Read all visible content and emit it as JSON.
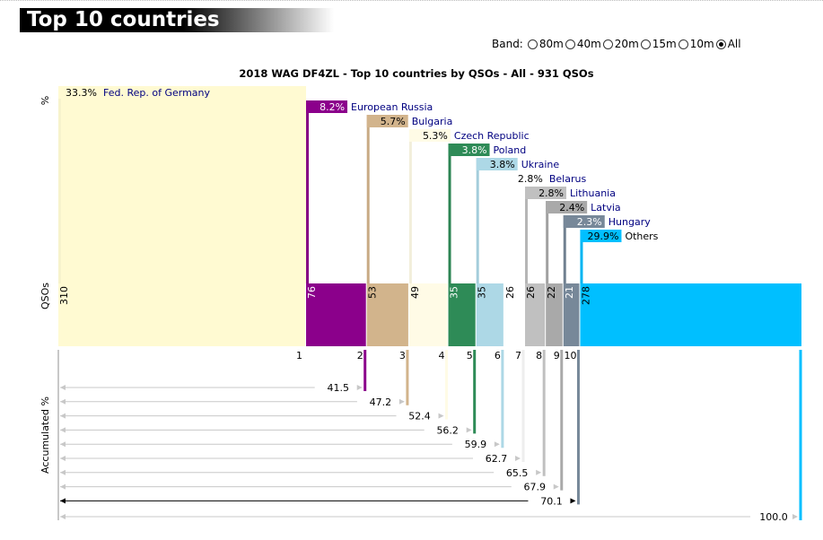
{
  "header": {
    "title": "Top 10 countries"
  },
  "band": {
    "label": "Band:",
    "options": [
      {
        "label": "80m",
        "selected": false
      },
      {
        "label": "40m",
        "selected": false
      },
      {
        "label": "20m",
        "selected": false
      },
      {
        "label": "15m",
        "selected": false
      },
      {
        "label": "10m",
        "selected": false
      },
      {
        "label": "All",
        "selected": true
      }
    ]
  },
  "chart_data": {
    "type": "bar",
    "title": "2018 WAG DF4ZL - Top 10 countries by QSOs - All - 931 QSOs",
    "total_qsos": 931,
    "axis_labels": {
      "percent": "%",
      "qsos": "QSOs",
      "accumulated": "Accumulated %"
    },
    "grid": false,
    "series": [
      {
        "rank": "1",
        "country": "Fed. Rep. of Germany",
        "qsos": 310,
        "percent": "33.3%",
        "accumulated": "",
        "color": "#fffad2"
      },
      {
        "rank": "2",
        "country": "European Russia",
        "qsos": 76,
        "percent": "8.2%",
        "accumulated": "41.5",
        "color": "#8b008b"
      },
      {
        "rank": "3",
        "country": "Bulgaria",
        "qsos": 53,
        "percent": "5.7%",
        "accumulated": "47.2",
        "color": "#d2b48c"
      },
      {
        "rank": "4",
        "country": "Czech Republic",
        "qsos": 49,
        "percent": "5.3%",
        "accumulated": "52.4",
        "color": "#fffbe6"
      },
      {
        "rank": "5",
        "country": "Poland",
        "qsos": 35,
        "percent": "3.8%",
        "accumulated": "56.2",
        "color": "#2e8b57"
      },
      {
        "rank": "6",
        "country": "Ukraine",
        "qsos": 35,
        "percent": "3.8%",
        "accumulated": "59.9",
        "color": "#add8e6"
      },
      {
        "rank": "7",
        "country": "Belarus",
        "qsos": 26,
        "percent": "2.8%",
        "accumulated": "62.7",
        "color": "#ffffff"
      },
      {
        "rank": "8",
        "country": "Lithuania",
        "qsos": 26,
        "percent": "2.8%",
        "accumulated": "65.5",
        "color": "#c0c0c0"
      },
      {
        "rank": "9",
        "country": "Latvia",
        "qsos": 22,
        "percent": "2.4%",
        "accumulated": "67.9",
        "color": "#a9a9a9"
      },
      {
        "rank": "10",
        "country": "Hungary",
        "qsos": 21,
        "percent": "2.3%",
        "accumulated": "70.1",
        "color": "#778899"
      },
      {
        "rank": "",
        "country": "Others",
        "qsos": 278,
        "percent": "29.9%",
        "accumulated": "100.0",
        "color": "#00bfff"
      }
    ]
  }
}
